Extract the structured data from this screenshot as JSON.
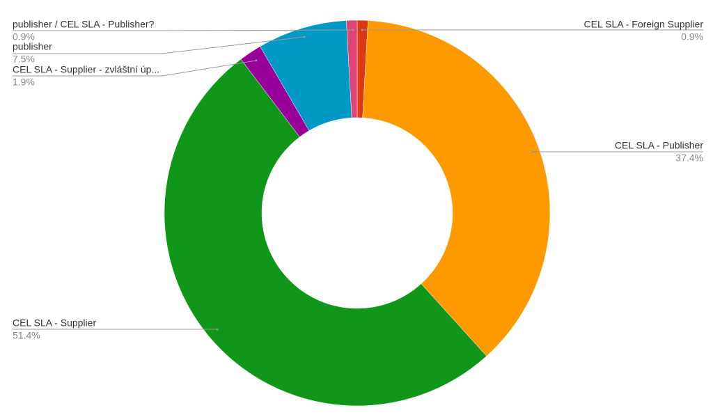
{
  "chart_data": {
    "type": "donut",
    "categories": [
      "CEL SLA - Foreign Supplier",
      "CEL SLA - Publisher",
      "CEL SLA - Supplier",
      "CEL SLA - Supplier - zvláštní úp...",
      "publisher",
      "publisher / CEL SLA - Publisher?"
    ],
    "values": [
      0.9,
      37.4,
      51.4,
      1.9,
      7.5,
      0.9
    ],
    "value_labels": [
      "0.9%",
      "37.4%",
      "51.4%",
      "1.9%",
      "7.5%",
      "0.9%"
    ],
    "colors": [
      "#dc3912",
      "#ff9900",
      "#109618",
      "#990099",
      "#0099c6",
      "#dd4477"
    ]
  }
}
